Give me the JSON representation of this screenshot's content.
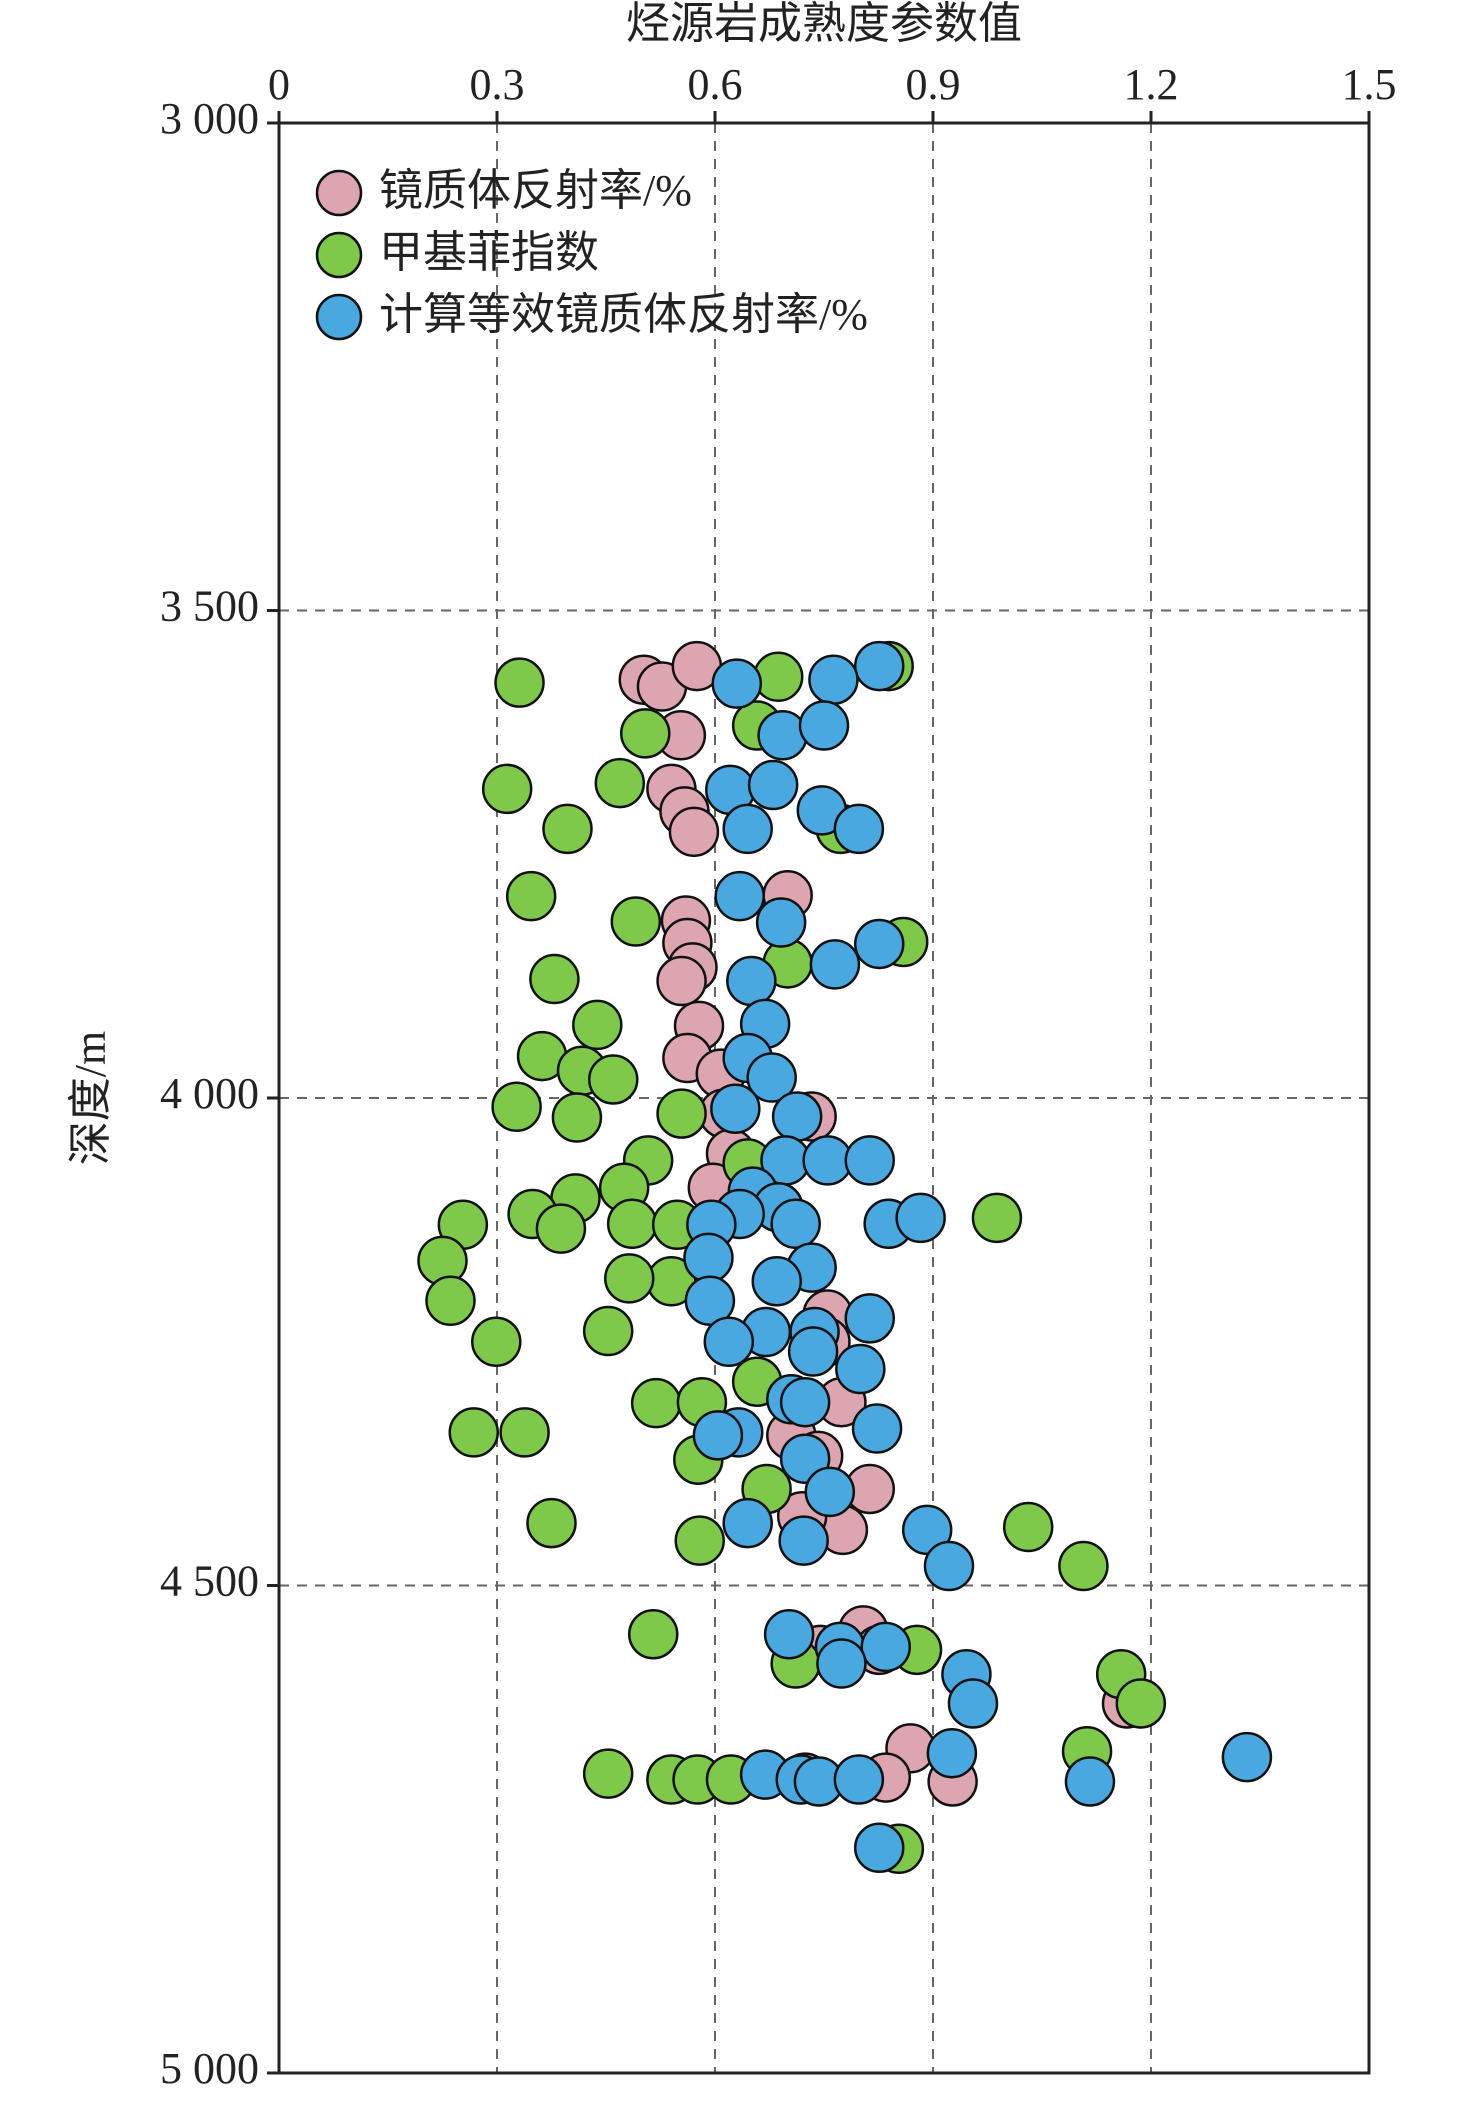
{
  "chart_data": {
    "type": "scatter",
    "x_label": "烃源岩成熟度参数值",
    "y_label": "深度/m",
    "xlim": [
      0,
      1.5
    ],
    "xticks": [
      0,
      0.3,
      0.6,
      0.9,
      1.2,
      1.5
    ],
    "ylim": [
      3000,
      5000
    ],
    "yticks": [
      {
        "value": 3000,
        "label": "3 000"
      },
      {
        "value": 3500,
        "label": "3 500"
      },
      {
        "value": 4000,
        "label": "4 000"
      },
      {
        "value": 4500,
        "label": "4 500"
      },
      {
        "value": 5000,
        "label": "5 000"
      }
    ],
    "y_inverted": true,
    "grid": true,
    "legend": "upper-left",
    "series": [
      {
        "name": "镜质体反射率/%",
        "color": "#dca5b0",
        "x": [
          0.502,
          0.527,
          0.575,
          0.553,
          0.54,
          0.558,
          0.571,
          0.7,
          0.56,
          0.562,
          0.569,
          0.554,
          0.578,
          0.562,
          0.608,
          0.612,
          0.733,
          0.622,
          0.597,
          0.687,
          0.755,
          0.752,
          0.774,
          0.705,
          0.742,
          0.813,
          0.776,
          0.72,
          0.804,
          0.745,
          0.826,
          1.167,
          0.869,
          0.835,
          0.927,
          0.724
        ],
        "values": [
          3571,
          3578,
          3557,
          3628,
          3683,
          3706,
          3727,
          3792,
          3818,
          3841,
          3866,
          3880,
          3926,
          3959,
          3975,
          4016,
          4019,
          4057,
          4092,
          4112,
          4222,
          4250,
          4312,
          4346,
          4367,
          4401,
          4443,
          4429,
          4546,
          4566,
          4566,
          4621,
          4667,
          4697,
          4701,
          4697
        ]
      },
      {
        "name": "甲基菲指数",
        "color": "#7ec84a",
        "x": [
          0.839,
          0.687,
          0.331,
          0.504,
          0.658,
          0.314,
          0.469,
          0.773,
          0.397,
          0.347,
          0.491,
          0.859,
          0.7,
          0.379,
          0.438,
          0.362,
          0.417,
          0.46,
          0.327,
          0.41,
          0.554,
          0.508,
          0.645,
          0.475,
          0.408,
          0.988,
          0.349,
          0.253,
          0.388,
          0.486,
          0.548,
          0.225,
          0.54,
          0.482,
          0.236,
          0.453,
          0.299,
          0.658,
          0.519,
          0.582,
          0.268,
          0.338,
          0.577,
          0.671,
          0.375,
          0.579,
          1.031,
          1.107,
          0.515,
          0.878,
          0.711,
          1.159,
          1.186,
          1.112,
          0.453,
          0.54,
          0.576,
          0.622,
          0.853
        ],
        "values": [
          3557,
          3568,
          3574,
          3626,
          3618,
          3683,
          3677,
          3724,
          3724,
          3793,
          3819,
          3840,
          3862,
          3878,
          3925,
          3957,
          3972,
          3981,
          4009,
          4020,
          4016,
          4064,
          4067,
          4092,
          4103,
          4123,
          4119,
          4130,
          4134,
          4129,
          4130,
          4167,
          4188,
          4185,
          4208,
          4239,
          4250,
          4291,
          4313,
          4312,
          4343,
          4343,
          4371,
          4401,
          4436,
          4454,
          4440,
          4480,
          4550,
          4566,
          4580,
          4591,
          4621,
          4670,
          4693,
          4699,
          4699,
          4699,
          4770
        ]
      },
      {
        "name": "计算等效镜质体反射率/%",
        "color": "#4aa8e0",
        "x": [
          0.826,
          0.63,
          0.763,
          0.693,
          0.75,
          0.621,
          0.68,
          0.747,
          0.645,
          0.798,
          0.634,
          0.691,
          0.826,
          0.765,
          0.65,
          0.669,
          0.645,
          0.678,
          0.628,
          0.713,
          0.697,
          0.755,
          0.813,
          0.652,
          0.687,
          0.634,
          0.595,
          0.711,
          0.839,
          0.883,
          0.591,
          0.733,
          0.685,
          0.593,
          0.813,
          0.67,
          0.737,
          0.619,
          0.735,
          0.8,
          0.705,
          0.724,
          0.823,
          0.632,
          0.604,
          0.724,
          0.758,
          0.645,
          0.722,
          0.892,
          0.922,
          0.702,
          0.772,
          0.835,
          0.774,
          0.946,
          0.955,
          0.926,
          1.332,
          1.116,
          0.669,
          0.718,
          0.743,
          0.798,
          0.826
        ],
        "values": [
          3557,
          3575,
          3571,
          3628,
          3618,
          3684,
          3679,
          3705,
          3724,
          3724,
          3793,
          3820,
          3842,
          3863,
          3880,
          3924,
          3959,
          3979,
          4011,
          4019,
          4064,
          4064,
          4064,
          4096,
          4112,
          4119,
          4130,
          4129,
          4129,
          4123,
          4164,
          4174,
          4188,
          4208,
          4226,
          4240,
          4240,
          4250,
          4260,
          4278,
          4309,
          4312,
          4339,
          4343,
          4346,
          4370,
          4404,
          4436,
          4454,
          4443,
          4480,
          4550,
          4563,
          4563,
          4580,
          4591,
          4621,
          4672,
          4676,
          4701,
          4694,
          4699,
          4701,
          4699,
          4769
        ]
      }
    ]
  }
}
